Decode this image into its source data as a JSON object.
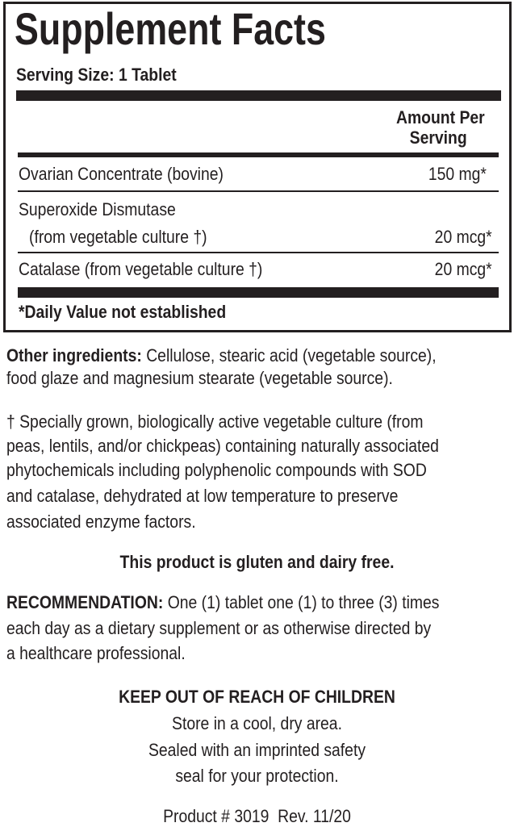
{
  "facts": {
    "title": "Supplement Facts",
    "serving_size": "Serving Size: 1 Tablet",
    "amount_header": [
      "Amount Per",
      "Serving"
    ],
    "rows": [
      {
        "name": "Ovarian Concentrate (bovine)",
        "amount": "150 mg*"
      },
      {
        "name": "Superoxide Dismutase",
        "name2": "(from vegetable culture †)",
        "amount": "20 mcg*"
      },
      {
        "name": "Catalase (from vegetable culture †)",
        "amount": "20 mcg*"
      }
    ],
    "footnote": "*Daily Value not established"
  },
  "other_ingredients": {
    "label": "Other ingredients:",
    "lines": [
      "Cellulose, stearic acid (vegetable source),",
      "food glaze and magnesium stearate (vegetable source)."
    ]
  },
  "dagger_note": [
    "† Specially grown, biologically active vegetable culture (from",
    "peas, lentils, and/or chickpeas) containing naturally associated",
    "phytochemicals including polyphenolic compounds with SOD",
    "and catalase, dehydrated at low temperature to preserve",
    "associated enzyme factors."
  ],
  "gluten_statement": "This product is gluten and dairy free.",
  "recommendation": {
    "label": "RECOMMENDATION:",
    "lines": [
      "One (1) tablet one (1) to three (3) times",
      "each day as a dietary supplement or as otherwise directed by",
      "a healthcare professional."
    ]
  },
  "warning": {
    "heading": "KEEP OUT OF REACH OF CHILDREN",
    "lines": [
      "Store in a cool, dry area.",
      "Sealed with an imprinted safety",
      "seal for your protection."
    ]
  },
  "product_line": "Product # 3019  Rev. 11/20"
}
